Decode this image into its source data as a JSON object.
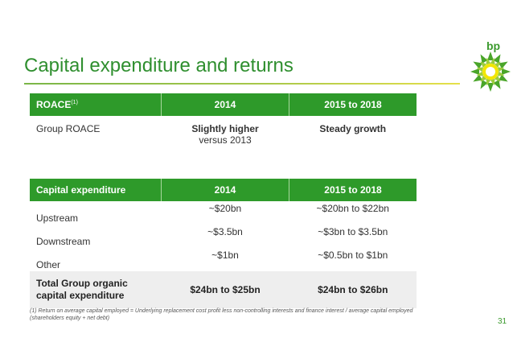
{
  "brand": {
    "logo_text": "bp"
  },
  "title": "Capital expenditure and returns",
  "roace_table": {
    "headers": [
      "ROACE",
      "2014",
      "2015 to 2018"
    ],
    "header_marker": "(1)",
    "row": {
      "label": "Group ROACE",
      "col2_line1": "Slightly higher",
      "col2_line2": "versus 2013",
      "col3": "Steady growth"
    }
  },
  "capex_table": {
    "headers": [
      "Capital expenditure",
      "2014",
      "2015 to 2018"
    ],
    "rows": [
      {
        "label": "Upstream",
        "y2014": "~$20bn",
        "y2015_2018": "~$20bn to $22bn"
      },
      {
        "label": "Downstream",
        "y2014": "~$3.5bn",
        "y2015_2018": "~$3bn to $3.5bn"
      },
      {
        "label": "Other",
        "y2014": "~$1bn",
        "y2015_2018": "~$0.5bn to $1bn"
      }
    ],
    "total": {
      "label_line1": "Total Group organic",
      "label_line2": "capital expenditure",
      "y2014": "$24bn to $25bn",
      "y2015_2018": "$24bn to $26bn"
    }
  },
  "footnote": {
    "line1": "(1) Return on average capital employed = Underlying replacement cost profit less non-controlling interests and finance interest / average capital employed",
    "line2": "(shareholders equity + net debt)"
  },
  "page_number": "31",
  "colors": {
    "brand_green": "#2e9a2a",
    "title_green": "#2f8f2f",
    "total_row_bg": "#eeeeee"
  }
}
